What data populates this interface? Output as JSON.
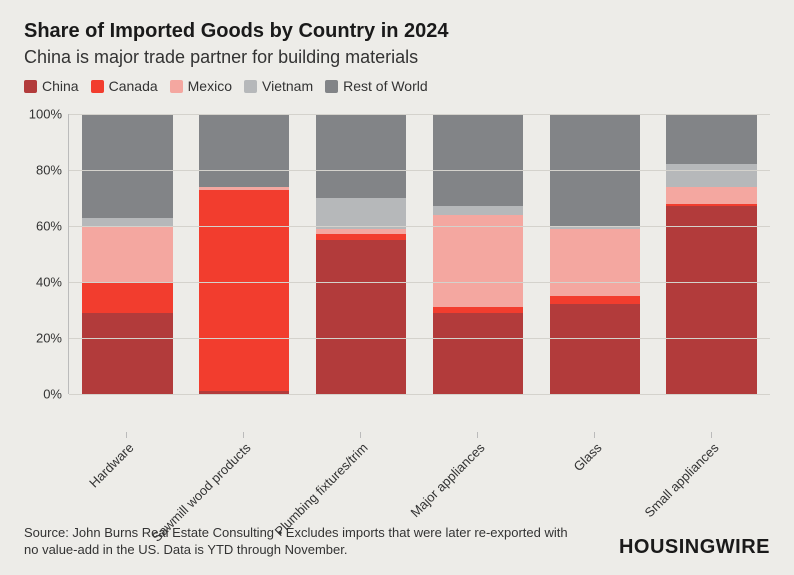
{
  "chart": {
    "type": "stacked-bar",
    "title": "Share of Imported Goods by Country in 2024",
    "subtitle": "China is major trade partner for building materials",
    "background_color": "#edece8",
    "grid_color": "#d4d2cc",
    "text_color": "#333333",
    "title_fontsize": 20,
    "subtitle_fontsize": 18,
    "axis_fontsize": 13,
    "y_axis": {
      "min": 0,
      "max": 100,
      "ticks": [
        0,
        20,
        40,
        60,
        80,
        100
      ],
      "suffix": "%"
    },
    "series": [
      {
        "key": "china",
        "label": "China",
        "color": "#b23b3b"
      },
      {
        "key": "canada",
        "label": "Canada",
        "color": "#f23d2e"
      },
      {
        "key": "mexico",
        "label": "Mexico",
        "color": "#f4a7a0"
      },
      {
        "key": "vietnam",
        "label": "Vietnam",
        "color": "#b6b8ba"
      },
      {
        "key": "row",
        "label": "Rest of World",
        "color": "#828487"
      }
    ],
    "categories": [
      {
        "label": "Hardware",
        "values": {
          "china": 29,
          "canada": 11,
          "mexico": 20,
          "vietnam": 3,
          "row": 37
        }
      },
      {
        "label": "Sawmill wood products",
        "values": {
          "china": 1,
          "canada": 72,
          "mexico": 1,
          "vietnam": 0,
          "row": 26
        }
      },
      {
        "label": "Plumbing fixtures/trim",
        "values": {
          "china": 55,
          "canada": 2,
          "mexico": 2,
          "vietnam": 11,
          "row": 30
        }
      },
      {
        "label": "Major appliances",
        "values": {
          "china": 29,
          "canada": 2,
          "mexico": 33,
          "vietnam": 3,
          "row": 33
        }
      },
      {
        "label": "Glass",
        "values": {
          "china": 32,
          "canada": 3,
          "mexico": 24,
          "vietnam": 1,
          "row": 40
        }
      },
      {
        "label": "Small appliances",
        "values": {
          "china": 67,
          "canada": 1,
          "mexico": 6,
          "vietnam": 8,
          "row": 18
        }
      }
    ],
    "source": "Source: John Burns Real Estate Consulting • Excludes imports that were later re-exported with no value-add in the US. Data is YTD through November.",
    "brand": "HOUSINGWIRE"
  }
}
